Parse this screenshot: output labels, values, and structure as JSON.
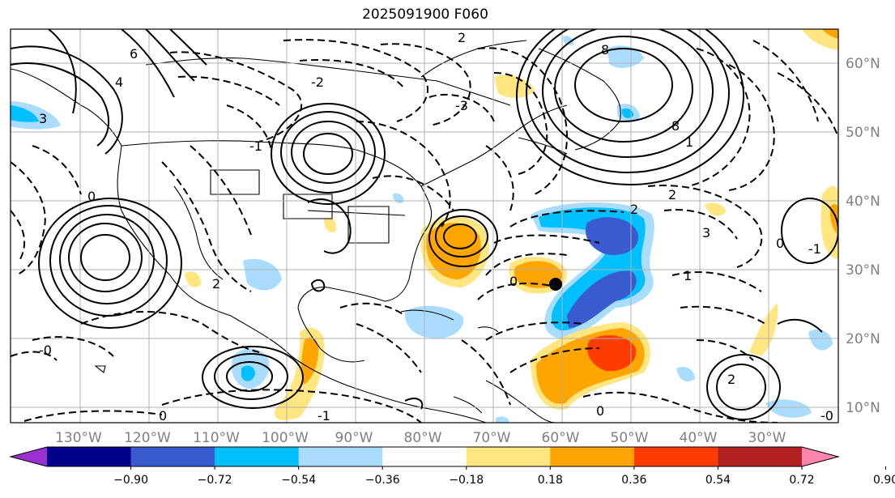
{
  "title": "2025091900 F060",
  "lat_labels": [
    "60°N",
    "50°N",
    "40°N",
    "30°N",
    "20°N",
    "10°N"
  ],
  "lon_labels": [
    "130°W",
    "120°W",
    "110°W",
    "100°W",
    "90°W",
    "80°W",
    "70°W",
    "60°W",
    "50°W",
    "40°W",
    "30°W"
  ],
  "colorbar": {
    "ticks": [
      "−0.90",
      "−0.72",
      "−0.54",
      "−0.36",
      "−0.18",
      "0.18",
      "0.36",
      "0.54",
      "0.72",
      "0.90"
    ],
    "colors": [
      "#9b30d0",
      "#00008b",
      "#3a5bcf",
      "#00bfff",
      "#aadcff",
      "#ffffff",
      "#ffe680",
      "#ffa500",
      "#ff3c00",
      "#b22222",
      "#ff85b0"
    ]
  },
  "contour_labels": [
    "2",
    "6",
    "4",
    "3",
    "0",
    "-1",
    "-2",
    "-3",
    "8",
    "1",
    "-0",
    "0",
    "2",
    "-1",
    "3",
    "2",
    "8",
    "0",
    "1",
    "2",
    "-1",
    "0",
    "2",
    "0",
    "-0"
  ],
  "colors": {
    "land_line": "#000000",
    "grid": "#b0b0b0",
    "light_blue": "#aadcff",
    "cyan": "#00bfff",
    "blue": "#3a5bcf",
    "yellow": "#ffe680",
    "orange": "#ffa500",
    "red": "#ff3c00"
  },
  "marker_icon": "storm-center-dot"
}
